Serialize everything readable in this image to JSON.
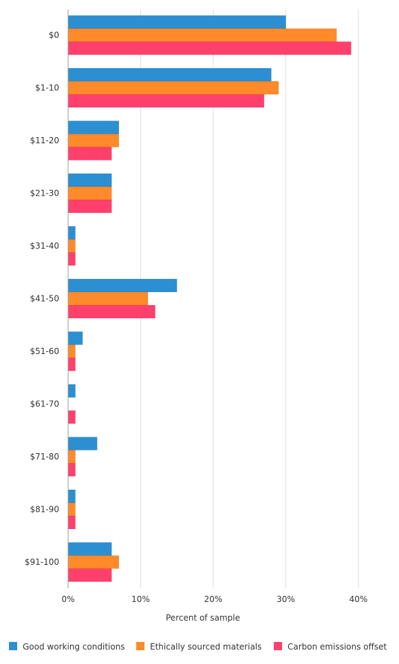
{
  "chart_data": {
    "type": "bar",
    "orientation": "horizontal",
    "categories": [
      "$0",
      "$1-10",
      "$11-20",
      "$21-30",
      "$31-40",
      "$41-50",
      "$51-60",
      "$61-70",
      "$71-80",
      "$81-90",
      "$91-100"
    ],
    "series": [
      {
        "name": "Good working conditions",
        "color": "#2b8fd2",
        "values": [
          30,
          28,
          7,
          6,
          1,
          15,
          2,
          1,
          4,
          1,
          6
        ]
      },
      {
        "name": "Ethically sourced materials",
        "color": "#ff8a2a",
        "values": [
          37,
          29,
          7,
          6,
          1,
          11,
          1,
          0,
          1,
          1,
          7
        ]
      },
      {
        "name": "Carbon emissions offset",
        "color": "#ff3f6c",
        "values": [
          39,
          27,
          6,
          6,
          1,
          12,
          1,
          1,
          1,
          1,
          6
        ]
      }
    ],
    "xlabel": "Percent of sample",
    "ylabel": "",
    "xlim": [
      0,
      40
    ],
    "xticks": [
      0,
      10,
      20,
      30,
      40
    ],
    "xtick_labels": [
      "0%",
      "10%",
      "20%",
      "30%",
      "40%"
    ],
    "grid": "vertical",
    "legend_position": "bottom"
  }
}
